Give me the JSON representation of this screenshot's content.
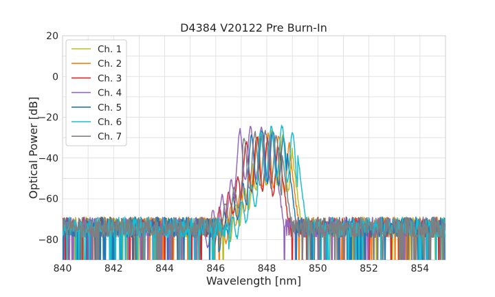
{
  "chart_data": {
    "type": "line",
    "title": "D4384 V20122 Pre Burn-In",
    "xlabel": "Wavelength [nm]",
    "ylabel": "Optical Power [dB]",
    "xlim": [
      840,
      855
    ],
    "ylim": [
      -90,
      20
    ],
    "x_ticks": [
      840,
      842,
      844,
      846,
      848,
      850,
      852,
      854
    ],
    "y_ticks": [
      20,
      0,
      -20,
      -40,
      -60,
      -80
    ],
    "x_tick_labels": [
      "840",
      "842",
      "844",
      "846",
      "848",
      "850",
      "852",
      "854"
    ],
    "y_tick_labels": [
      "20",
      "0",
      "−20",
      "−40",
      "−60",
      "−80"
    ],
    "grid": true,
    "legend_position": "top-left",
    "noise_floor_db": -80,
    "series": [
      {
        "name": "Ch. 1",
        "color": "#bcbd22",
        "peak_center_nm": 848.2,
        "peak_db": -27
      },
      {
        "name": "Ch. 2",
        "color": "#ff7f0e",
        "peak_center_nm": 848.1,
        "peak_db": -28
      },
      {
        "name": "Ch. 3",
        "color": "#d62728",
        "peak_center_nm": 847.7,
        "peak_db": -30
      },
      {
        "name": "Ch. 4",
        "color": "#9467bd",
        "peak_center_nm": 847.5,
        "peak_db": -24
      },
      {
        "name": "Ch. 5",
        "color": "#1f77b4",
        "peak_center_nm": 848.0,
        "peak_db": -26
      },
      {
        "name": "Ch. 6",
        "color": "#17becf",
        "peak_center_nm": 848.4,
        "peak_db": -24
      },
      {
        "name": "Ch. 7",
        "color": "#7f7f7f",
        "peak_center_nm": 847.8,
        "peak_db": -27
      }
    ]
  }
}
